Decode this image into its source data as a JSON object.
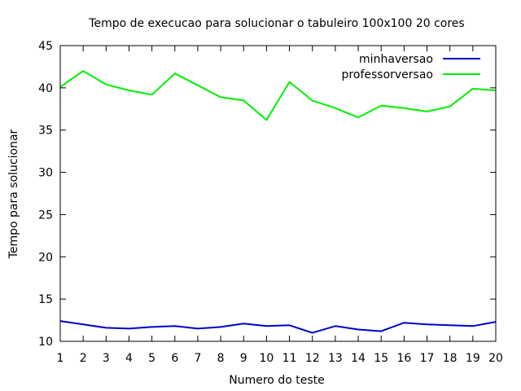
{
  "chart_data": {
    "type": "line",
    "title": "Tempo de execucao para solucionar o tabuleiro 100x100 20 cores",
    "xlabel": "Numero do teste",
    "ylabel": "Tempo para solucionar",
    "xlim": [
      1,
      20
    ],
    "ylim": [
      10,
      45
    ],
    "x": [
      1,
      2,
      3,
      4,
      5,
      6,
      7,
      8,
      9,
      10,
      11,
      12,
      13,
      14,
      15,
      16,
      17,
      18,
      19,
      20
    ],
    "xticks": [
      1,
      2,
      3,
      4,
      5,
      6,
      7,
      8,
      9,
      10,
      11,
      12,
      13,
      14,
      15,
      16,
      17,
      18,
      19,
      20
    ],
    "yticks": [
      10,
      15,
      20,
      25,
      30,
      35,
      40,
      45
    ],
    "grid": false,
    "legend_position": "top-right",
    "series": [
      {
        "name": "minhaversao",
        "color": "#0000cc",
        "values": [
          12.4,
          12.0,
          11.6,
          11.5,
          11.7,
          11.8,
          11.5,
          11.7,
          12.1,
          11.8,
          11.9,
          11.0,
          11.8,
          11.4,
          11.2,
          12.2,
          12.0,
          11.9,
          11.8,
          12.3
        ]
      },
      {
        "name": "professorversao",
        "color": "#00ee00",
        "values": [
          40.1,
          42.0,
          40.4,
          39.7,
          39.2,
          41.7,
          40.3,
          38.9,
          38.5,
          36.2,
          40.7,
          38.5,
          37.6,
          36.5,
          37.9,
          37.6,
          37.2,
          37.8,
          39.9,
          39.7
        ]
      }
    ]
  }
}
